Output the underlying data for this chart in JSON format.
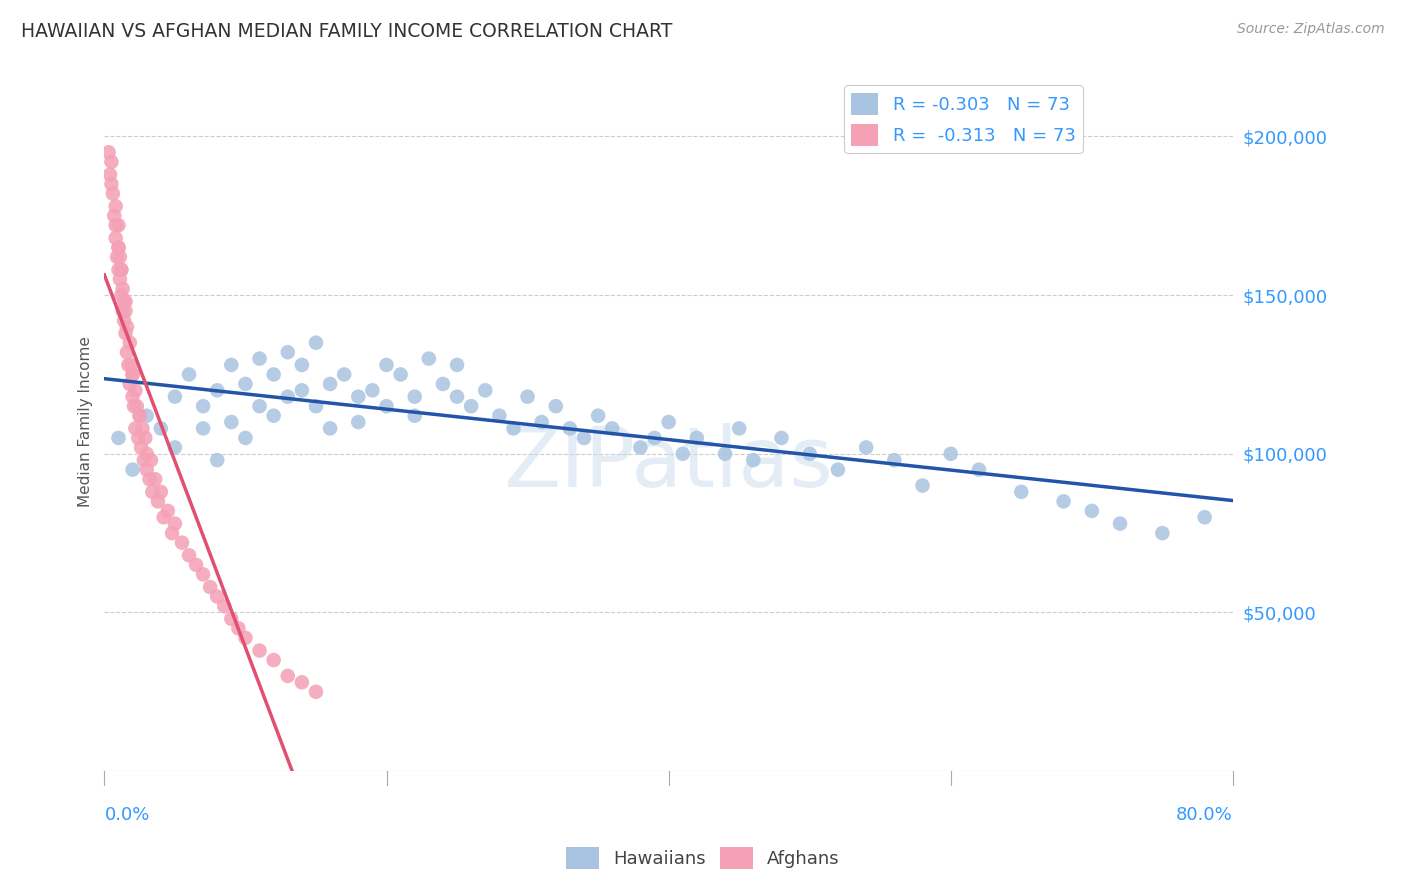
{
  "title": "HAWAIIAN VS AFGHAN MEDIAN FAMILY INCOME CORRELATION CHART",
  "source": "Source: ZipAtlas.com",
  "ylabel": "Median Family Income",
  "ytick_labels": [
    "$50,000",
    "$100,000",
    "$150,000",
    "$200,000"
  ],
  "ytick_values": [
    50000,
    100000,
    150000,
    200000
  ],
  "ylim": [
    0,
    220000
  ],
  "xlim": [
    0.0,
    0.8
  ],
  "R_hawaiian": -0.303,
  "N_hawaiian": 73,
  "R_afghan": -0.313,
  "N_afghan": 73,
  "hawaiian_color": "#a8c4e0",
  "afghan_color": "#f4a0b5",
  "trendline_hawaiian_color": "#2255aa",
  "trendline_afghan_solid_color": "#e05070",
  "trendline_afghan_dashed_color": "#f0c0d0",
  "background_color": "#ffffff",
  "grid_color": "#cccccc",
  "title_color": "#333333",
  "ylabel_color": "#555555",
  "ytick_color": "#3399ff",
  "xtick_color": "#3399ff",
  "legend_text_color": "#3399ff",
  "hawaiian_x": [
    0.01,
    0.02,
    0.03,
    0.04,
    0.05,
    0.05,
    0.06,
    0.07,
    0.07,
    0.08,
    0.08,
    0.09,
    0.09,
    0.1,
    0.1,
    0.11,
    0.11,
    0.12,
    0.12,
    0.13,
    0.13,
    0.14,
    0.14,
    0.15,
    0.15,
    0.16,
    0.16,
    0.17,
    0.18,
    0.18,
    0.19,
    0.2,
    0.2,
    0.21,
    0.22,
    0.22,
    0.23,
    0.24,
    0.25,
    0.25,
    0.26,
    0.27,
    0.28,
    0.29,
    0.3,
    0.31,
    0.32,
    0.33,
    0.34,
    0.35,
    0.36,
    0.38,
    0.39,
    0.4,
    0.41,
    0.42,
    0.44,
    0.45,
    0.46,
    0.48,
    0.5,
    0.52,
    0.54,
    0.56,
    0.58,
    0.6,
    0.62,
    0.65,
    0.68,
    0.7,
    0.72,
    0.75,
    0.78
  ],
  "hawaiian_y": [
    105000,
    95000,
    112000,
    108000,
    118000,
    102000,
    125000,
    115000,
    108000,
    120000,
    98000,
    128000,
    110000,
    122000,
    105000,
    130000,
    115000,
    125000,
    112000,
    132000,
    118000,
    128000,
    120000,
    135000,
    115000,
    122000,
    108000,
    125000,
    118000,
    110000,
    120000,
    128000,
    115000,
    125000,
    118000,
    112000,
    130000,
    122000,
    128000,
    118000,
    115000,
    120000,
    112000,
    108000,
    118000,
    110000,
    115000,
    108000,
    105000,
    112000,
    108000,
    102000,
    105000,
    110000,
    100000,
    105000,
    100000,
    108000,
    98000,
    105000,
    100000,
    95000,
    102000,
    98000,
    90000,
    100000,
    95000,
    88000,
    85000,
    82000,
    78000,
    75000,
    80000
  ],
  "afghan_x": [
    0.005,
    0.005,
    0.007,
    0.008,
    0.008,
    0.009,
    0.01,
    0.01,
    0.01,
    0.011,
    0.011,
    0.012,
    0.012,
    0.013,
    0.013,
    0.014,
    0.014,
    0.015,
    0.015,
    0.016,
    0.016,
    0.017,
    0.018,
    0.018,
    0.019,
    0.02,
    0.02,
    0.021,
    0.022,
    0.022,
    0.023,
    0.024,
    0.025,
    0.026,
    0.027,
    0.028,
    0.029,
    0.03,
    0.03,
    0.032,
    0.033,
    0.034,
    0.036,
    0.038,
    0.04,
    0.042,
    0.045,
    0.048,
    0.05,
    0.055,
    0.06,
    0.065,
    0.07,
    0.075,
    0.08,
    0.085,
    0.09,
    0.095,
    0.1,
    0.11,
    0.12,
    0.13,
    0.14,
    0.15,
    0.003,
    0.004,
    0.006,
    0.008,
    0.01,
    0.012,
    0.015,
    0.02,
    0.025
  ],
  "afghan_y": [
    185000,
    192000,
    175000,
    168000,
    178000,
    162000,
    172000,
    158000,
    165000,
    155000,
    162000,
    150000,
    158000,
    145000,
    152000,
    142000,
    148000,
    138000,
    145000,
    132000,
    140000,
    128000,
    135000,
    122000,
    128000,
    118000,
    125000,
    115000,
    120000,
    108000,
    115000,
    105000,
    112000,
    102000,
    108000,
    98000,
    105000,
    95000,
    100000,
    92000,
    98000,
    88000,
    92000,
    85000,
    88000,
    80000,
    82000,
    75000,
    78000,
    72000,
    68000,
    65000,
    62000,
    58000,
    55000,
    52000,
    48000,
    45000,
    42000,
    38000,
    35000,
    30000,
    28000,
    25000,
    195000,
    188000,
    182000,
    172000,
    165000,
    158000,
    148000,
    125000,
    112000
  ]
}
